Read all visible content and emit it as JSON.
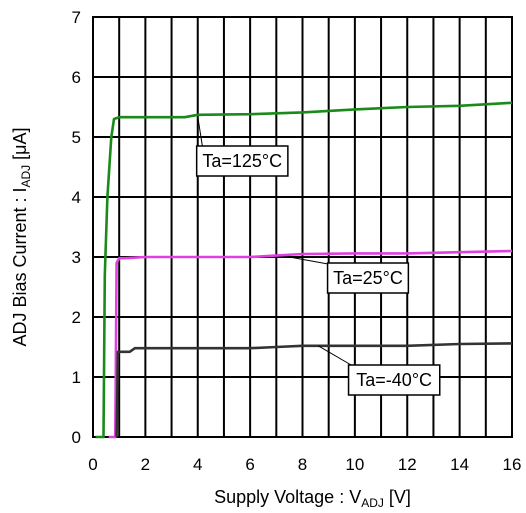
{
  "chart_data": {
    "type": "line",
    "x_axis": {
      "label": "Supply Voltage : V",
      "label_sub": "ADJ",
      "label_unit": " [V]",
      "min": 0,
      "max": 16,
      "ticks": [
        0,
        2,
        4,
        6,
        8,
        10,
        12,
        14,
        16
      ]
    },
    "y_axis": {
      "label": "ADJ Bias Current : I",
      "label_sub": "ADJ",
      "label_unit": " [μA]",
      "min": 0,
      "max": 7,
      "ticks": [
        0,
        1,
        2,
        3,
        4,
        5,
        6,
        7
      ]
    },
    "grid": true,
    "series": [
      {
        "name": "Ta=125°C",
        "color": "#1a8a1a",
        "points": [
          [
            0.1,
            0
          ],
          [
            0.4,
            0
          ],
          [
            0.45,
            2.7
          ],
          [
            0.55,
            4.0
          ],
          [
            0.7,
            5.0
          ],
          [
            0.8,
            5.3
          ],
          [
            1.0,
            5.33
          ],
          [
            2,
            5.33
          ],
          [
            3.5,
            5.33
          ],
          [
            4,
            5.37
          ],
          [
            6,
            5.38
          ],
          [
            8,
            5.41
          ],
          [
            10,
            5.46
          ],
          [
            12,
            5.5
          ],
          [
            14,
            5.52
          ],
          [
            16,
            5.57
          ]
        ]
      },
      {
        "name": "Ta=25°C",
        "color": "#e040e0",
        "points": [
          [
            0.6,
            0
          ],
          [
            0.85,
            0
          ],
          [
            0.9,
            2.9
          ],
          [
            1.0,
            2.98
          ],
          [
            1.2,
            2.98
          ],
          [
            2,
            3.0
          ],
          [
            4,
            3.0
          ],
          [
            6,
            3.0
          ],
          [
            8,
            3.05
          ],
          [
            10,
            3.06
          ],
          [
            12,
            3.06
          ],
          [
            14,
            3.08
          ],
          [
            16,
            3.1
          ]
        ]
      },
      {
        "name": "Ta=-40°C",
        "color": "#333333",
        "points": [
          [
            0.9,
            0
          ],
          [
            0.95,
            1.42
          ],
          [
            1.4,
            1.42
          ],
          [
            1.6,
            1.48
          ],
          [
            4,
            1.48
          ],
          [
            6,
            1.48
          ],
          [
            7,
            1.5
          ],
          [
            8,
            1.52
          ],
          [
            10,
            1.52
          ],
          [
            12,
            1.52
          ],
          [
            14,
            1.55
          ],
          [
            16,
            1.56
          ]
        ]
      }
    ],
    "callouts": [
      {
        "text": "Ta=125°C",
        "series": 0,
        "target": [
          4.0,
          5.34
        ],
        "box_at": [
          5.7,
          4.6
        ]
      },
      {
        "text": "Ta=25°C",
        "series": 1,
        "target": [
          7.5,
          3.0
        ],
        "box_at": [
          10.5,
          2.65
        ]
      },
      {
        "text": "Ta=-40°C",
        "series": 2,
        "target": [
          8.6,
          1.52
        ],
        "box_at": [
          11.5,
          0.95
        ]
      }
    ]
  }
}
